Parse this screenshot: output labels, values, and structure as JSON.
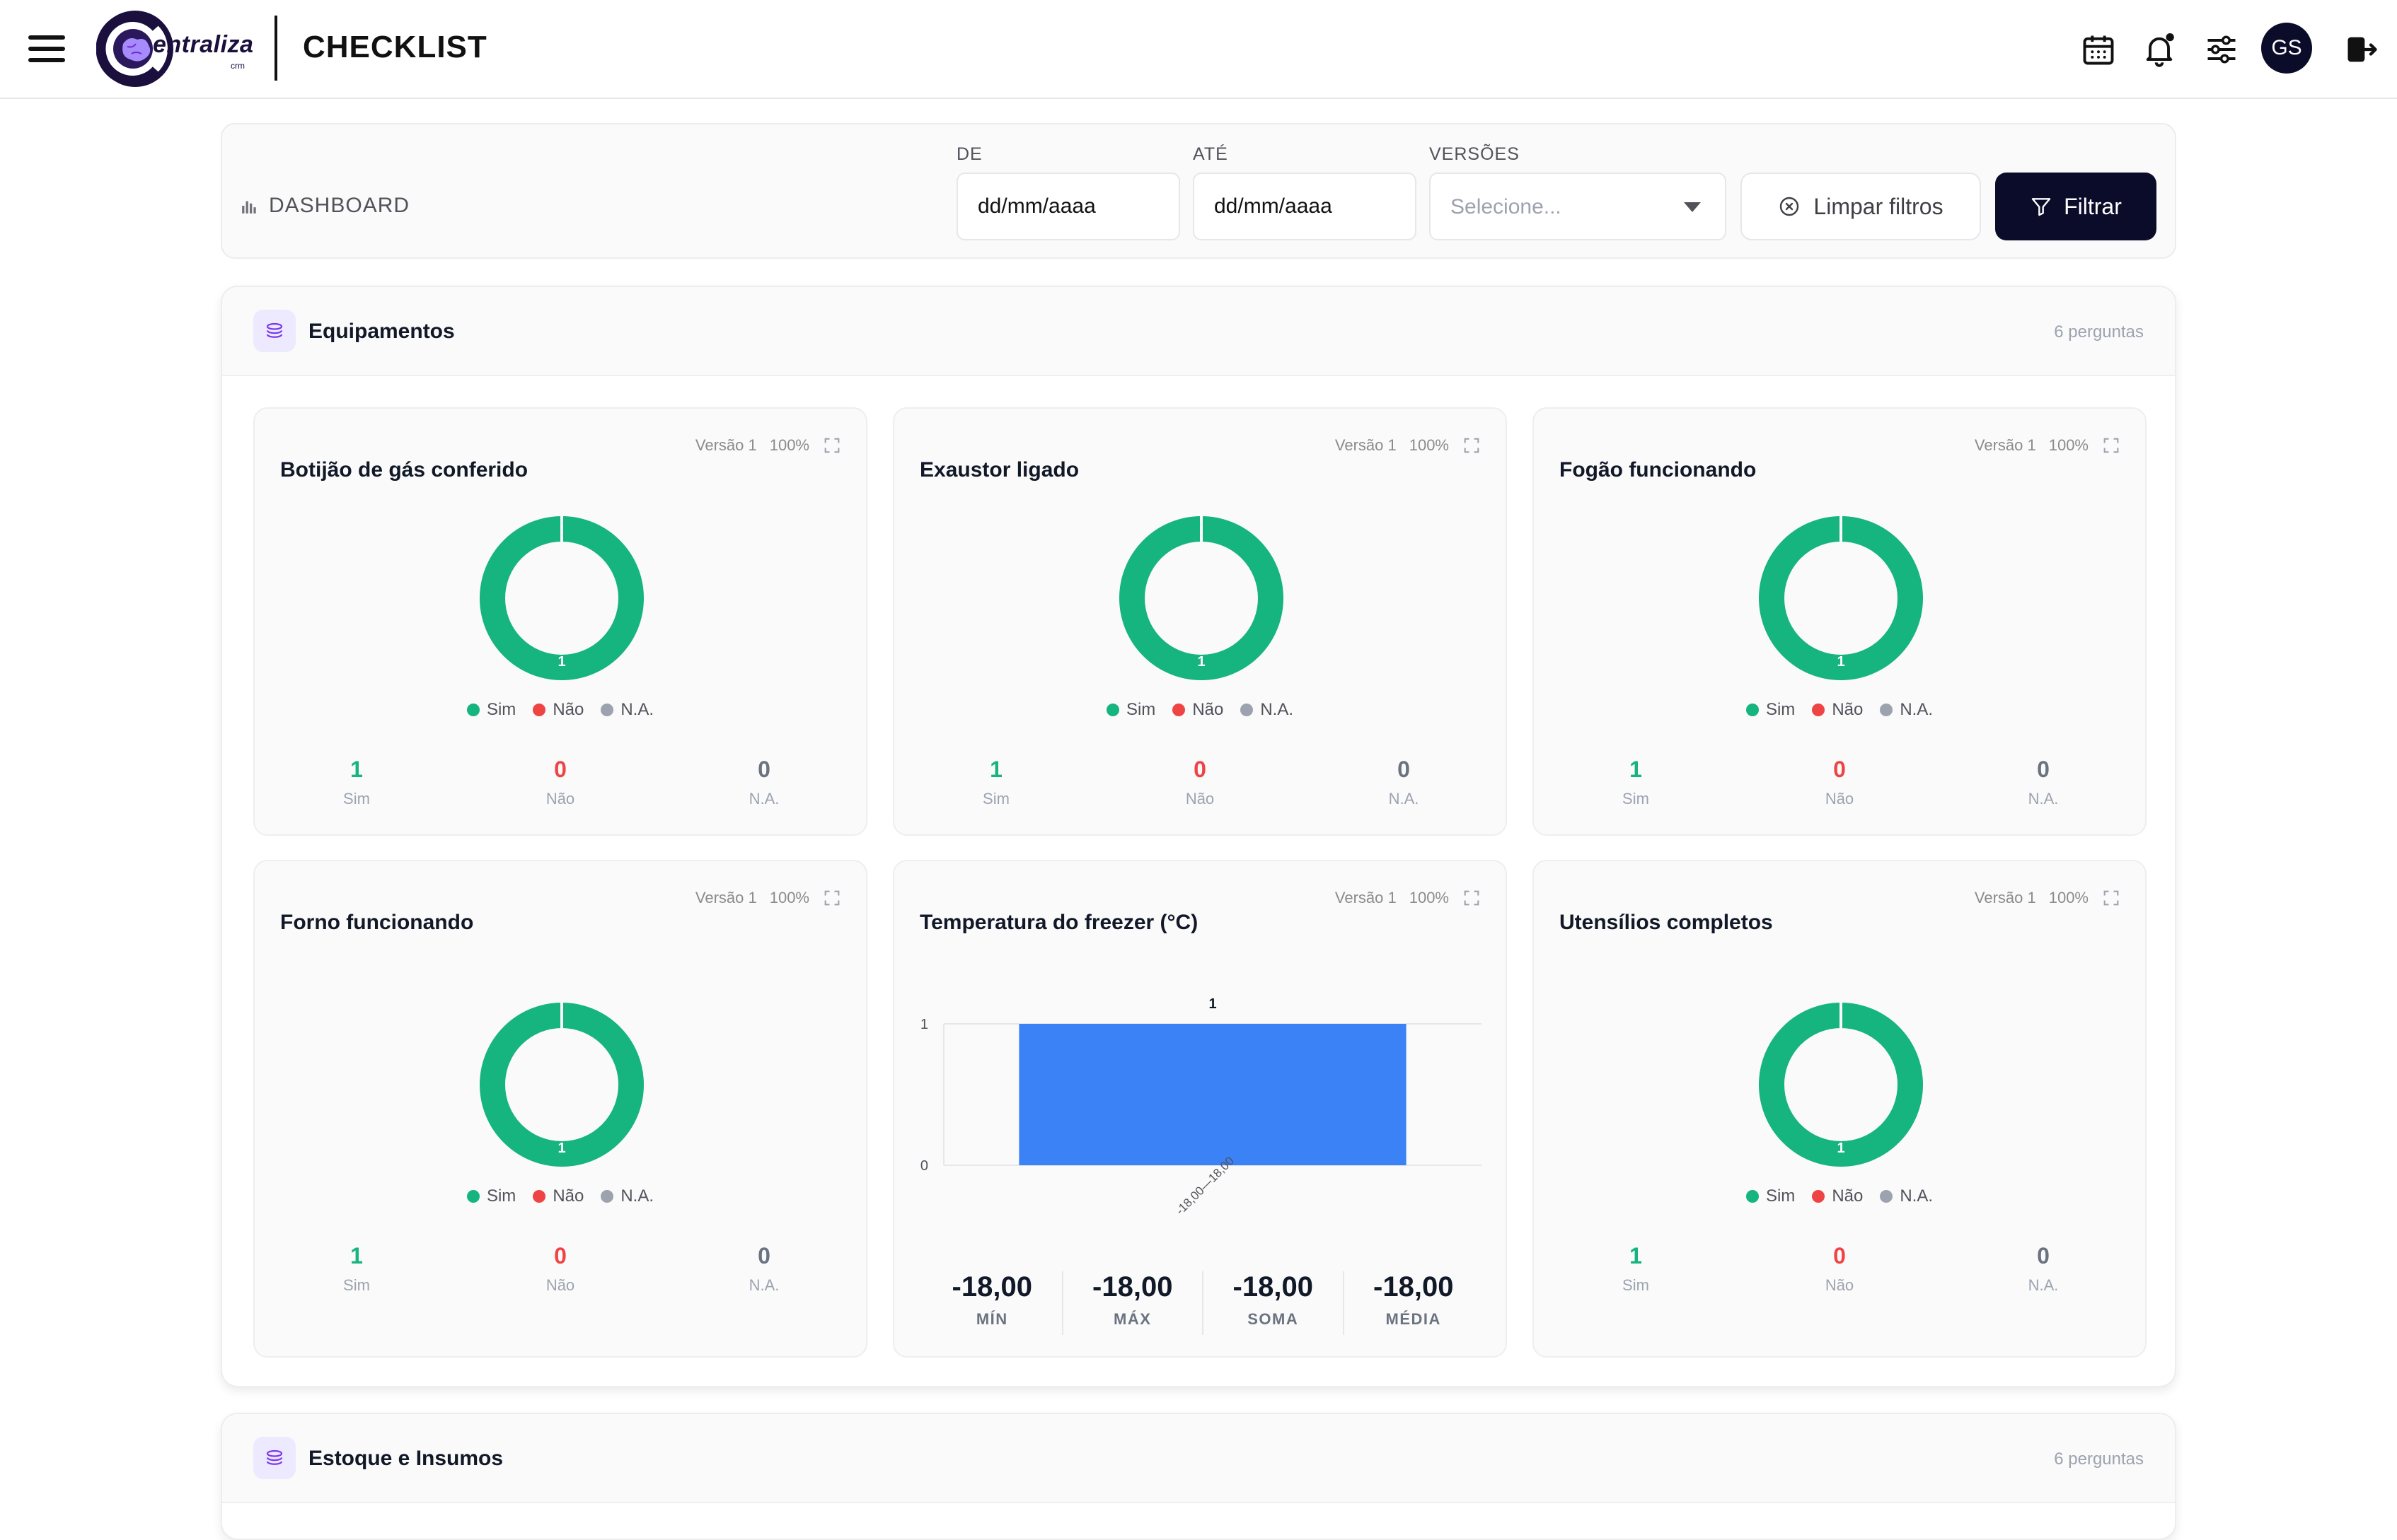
{
  "header": {
    "logo_text": "entraliza",
    "logo_sub": "crm",
    "title": "CHECKLIST",
    "avatar_initials": "GS",
    "icons": [
      "menu-icon",
      "calendar-icon",
      "bell-icon",
      "sliders-icon",
      "logout-icon"
    ]
  },
  "filters": {
    "section_label": "DASHBOARD",
    "from_label": "DE",
    "from_placeholder": "dd/mm/aaaa",
    "to_label": "ATÉ",
    "to_placeholder": "dd/mm/aaaa",
    "versions_label": "VERSÕES",
    "versions_value": "Selecione...",
    "clear_label": "Limpar filtros",
    "filter_label": "Filtrar"
  },
  "sections": [
    {
      "title": "Equipamentos",
      "count": "6 perguntas",
      "questions": [
        {
          "title": "Botijão de gás conferido",
          "version": "Versão 1",
          "pct": "100%",
          "donut_label": "1",
          "sim": "1",
          "nao": "0",
          "na": "0"
        },
        {
          "title": "Exaustor ligado",
          "version": "Versão 1",
          "pct": "100%",
          "donut_label": "1",
          "sim": "1",
          "nao": "0",
          "na": "0"
        },
        {
          "title": "Fogão funcionando",
          "version": "Versão 1",
          "pct": "100%",
          "donut_label": "1",
          "sim": "1",
          "nao": "0",
          "na": "0"
        },
        {
          "title": "Forno funcionando",
          "version": "Versão 1",
          "pct": "100%",
          "donut_label": "1",
          "sim": "1",
          "nao": "0",
          "na": "0"
        },
        {
          "title": "Temperatura do freezer (°C)",
          "version": "Versão 1",
          "pct": "100%"
        },
        {
          "title": "Utensílios completos",
          "version": "Versão 1",
          "pct": "100%",
          "donut_label": "1",
          "sim": "1",
          "nao": "0",
          "na": "0"
        }
      ]
    },
    {
      "title": "Estoque e Insumos",
      "count": "6 perguntas"
    }
  ],
  "legend": {
    "sim": "Sim",
    "nao": "Não",
    "na": "N.A."
  },
  "colors": {
    "sim": "#16b47e",
    "nao": "#ef4444",
    "na": "#9ca3af",
    "bar": "#3b82f6",
    "brand": "#0b0b2a"
  },
  "chart_data": {
    "type": "bar",
    "categories": [
      "-18,00—18,00"
    ],
    "values": [
      1
    ],
    "data_labels": [
      "1"
    ],
    "title": "",
    "xlabel": "",
    "ylabel": "",
    "ylim": [
      0,
      1
    ],
    "yticks": [
      "0",
      "1"
    ]
  },
  "freezer_summary": {
    "min_value": "-18,00",
    "min_label": "MÍN",
    "max_value": "-18,00",
    "max_label": "MÁX",
    "sum_value": "-18,00",
    "sum_label": "SOMA",
    "avg_value": "-18,00",
    "avg_label": "MÉDIA"
  }
}
